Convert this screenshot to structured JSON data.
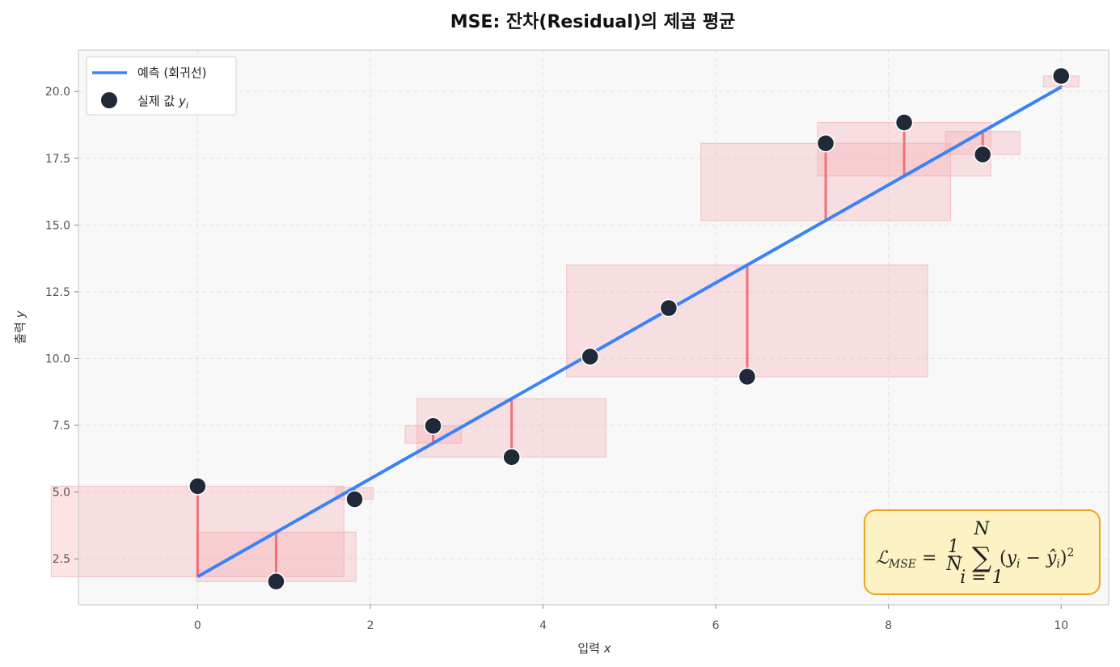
{
  "chart_data": {
    "type": "scatter",
    "title": "MSE: 잔차(Residual)의 제곱 평균",
    "xlabel": "입력",
    "xlabel_var": "x",
    "ylabel": "출력",
    "ylabel_var": "y",
    "xlim": [
      -1.38,
      10.55
    ],
    "ylim": [
      0.78,
      21.55
    ],
    "xticks": [
      0,
      2,
      4,
      6,
      8,
      10
    ],
    "xtick_labels": [
      "0",
      "2",
      "4",
      "6",
      "8",
      "10"
    ],
    "yticks": [
      2.5,
      5.0,
      7.5,
      10.0,
      12.5,
      15.0,
      17.5,
      20.0
    ],
    "ytick_labels": [
      "2.5",
      "5.0",
      "7.5",
      "10.0",
      "12.5",
      "15.0",
      "17.5",
      "20.0"
    ],
    "grid": true,
    "legend_position": "top-left",
    "prediction_line": {
      "name": "예측 (회귀선)",
      "x": [
        0,
        10
      ],
      "y": [
        1.83,
        20.17
      ]
    },
    "actual_points": {
      "name": "실제 값",
      "name_var": "y",
      "name_sub": "i",
      "x": [
        0,
        0.909,
        1.818,
        2.727,
        3.636,
        4.545,
        5.455,
        6.364,
        7.273,
        8.182,
        9.091,
        10
      ],
      "y": [
        5.22,
        1.65,
        4.73,
        7.48,
        6.31,
        10.07,
        11.89,
        9.32,
        18.06,
        18.84,
        17.64,
        20.58
      ]
    },
    "formula": "𝓛MSE = 1/N Σ(i=1..N) (yi − ŷi)²",
    "colors": {
      "line": "#3b82f6",
      "points": "#1f2937",
      "residual": "#f07178",
      "square_fill": "#f4a6aa",
      "formula_bg": "#fdf2c3",
      "formula_border": "#f0a31c",
      "plot_bg": "#f8f8f9"
    }
  }
}
